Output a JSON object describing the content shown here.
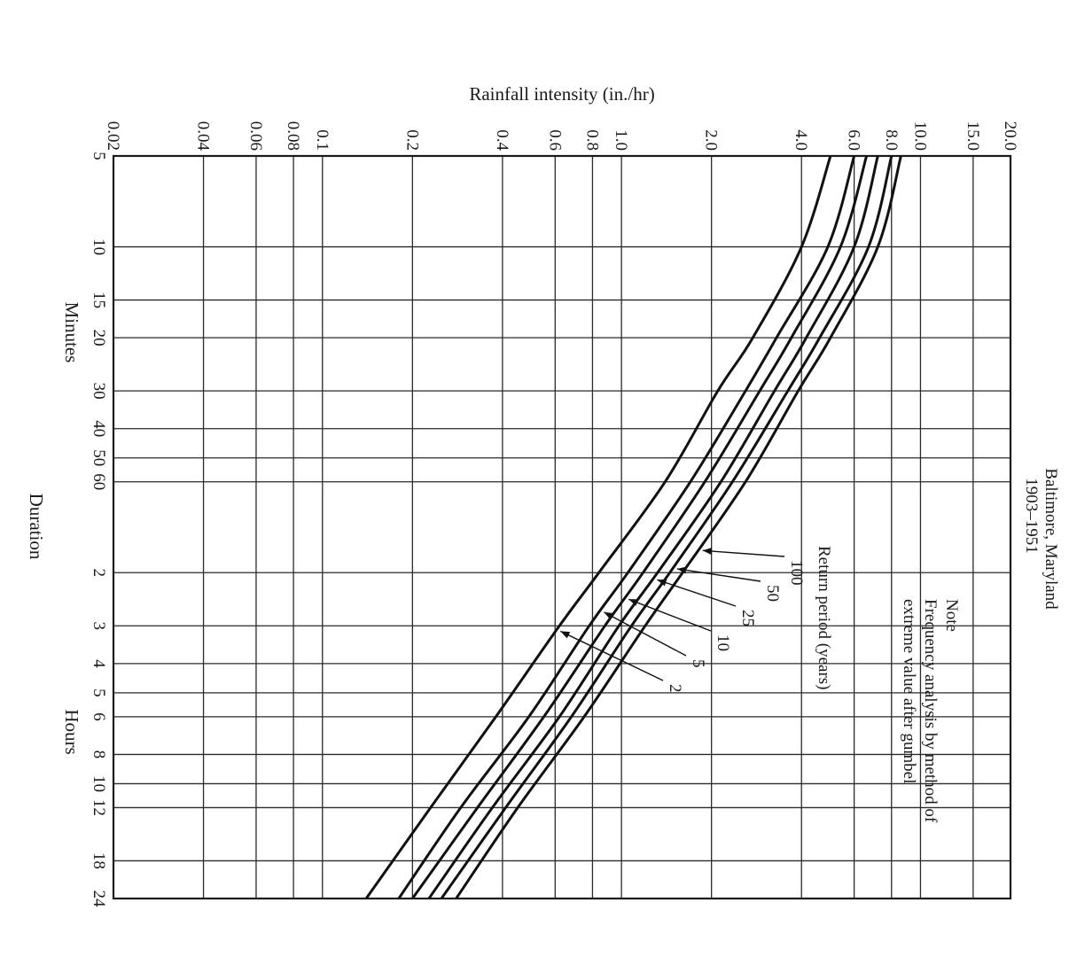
{
  "chart_data": {
    "type": "line",
    "y_axis_title": "Rainfall intensity (in./hr)",
    "x_axis_title": "Duration",
    "minutes_label": "Minutes",
    "hours_label": "Hours",
    "y_scale": "log",
    "x_scale": "log",
    "ylim": [
      0.02,
      20.0
    ],
    "xlim_minutes": [
      5,
      1440
    ],
    "y_ticks": [
      {
        "value": 0.02,
        "label": "0.02"
      },
      {
        "value": 0.04,
        "label": "0.04"
      },
      {
        "value": 0.06,
        "label": "0.06"
      },
      {
        "value": 0.08,
        "label": "0.08"
      },
      {
        "value": 0.1,
        "label": "0.1"
      },
      {
        "value": 0.2,
        "label": "0.2"
      },
      {
        "value": 0.4,
        "label": "0.4"
      },
      {
        "value": 0.6,
        "label": "0.6"
      },
      {
        "value": 0.8,
        "label": "0.8"
      },
      {
        "value": 1.0,
        "label": "1.0"
      },
      {
        "value": 2.0,
        "label": "2.0"
      },
      {
        "value": 4.0,
        "label": "4.0"
      },
      {
        "value": 6.0,
        "label": "6.0"
      },
      {
        "value": 8.0,
        "label": "8.0"
      },
      {
        "value": 10.0,
        "label": "10.0"
      },
      {
        "value": 15.0,
        "label": "15.0"
      },
      {
        "value": 20.0,
        "label": "20.0"
      }
    ],
    "x_ticks": [
      {
        "minutes": 5,
        "label": "5"
      },
      {
        "minutes": 10,
        "label": "10"
      },
      {
        "minutes": 15,
        "label": "15"
      },
      {
        "minutes": 20,
        "label": "20"
      },
      {
        "minutes": 30,
        "label": "30"
      },
      {
        "minutes": 40,
        "label": "40"
      },
      {
        "minutes": 50,
        "label": "50"
      },
      {
        "minutes": 60,
        "label": "60"
      },
      {
        "minutes": 120,
        "label": "2"
      },
      {
        "minutes": 180,
        "label": "3"
      },
      {
        "minutes": 240,
        "label": "4"
      },
      {
        "minutes": 300,
        "label": "5"
      },
      {
        "minutes": 360,
        "label": "6"
      },
      {
        "minutes": 480,
        "label": "8"
      },
      {
        "minutes": 600,
        "label": "10"
      },
      {
        "minutes": 720,
        "label": "12"
      },
      {
        "minutes": 1080,
        "label": "18"
      },
      {
        "minutes": 1440,
        "label": "24"
      }
    ],
    "series": [
      {
        "name": "100",
        "points": [
          [
            5,
            8.6
          ],
          [
            10,
            7.2
          ],
          [
            20,
            5.0
          ],
          [
            30,
            3.9
          ],
          [
            60,
            2.6
          ],
          [
            120,
            1.6
          ],
          [
            180,
            1.2
          ],
          [
            360,
            0.75
          ],
          [
            720,
            0.45
          ],
          [
            1440,
            0.28
          ]
        ]
      },
      {
        "name": "50",
        "points": [
          [
            5,
            8.0
          ],
          [
            10,
            6.7
          ],
          [
            20,
            4.6
          ],
          [
            30,
            3.6
          ],
          [
            60,
            2.35
          ],
          [
            120,
            1.45
          ],
          [
            180,
            1.08
          ],
          [
            360,
            0.68
          ],
          [
            720,
            0.41
          ],
          [
            1440,
            0.25
          ]
        ]
      },
      {
        "name": "25",
        "points": [
          [
            5,
            7.2
          ],
          [
            10,
            6.0
          ],
          [
            20,
            4.15
          ],
          [
            30,
            3.25
          ],
          [
            60,
            2.15
          ],
          [
            120,
            1.32
          ],
          [
            180,
            0.98
          ],
          [
            360,
            0.62
          ],
          [
            720,
            0.37
          ],
          [
            1440,
            0.227
          ]
        ]
      },
      {
        "name": "10",
        "points": [
          [
            5,
            6.6
          ],
          [
            10,
            5.4
          ],
          [
            20,
            3.7
          ],
          [
            30,
            2.9
          ],
          [
            60,
            1.9
          ],
          [
            120,
            1.18
          ],
          [
            180,
            0.88
          ],
          [
            360,
            0.55
          ],
          [
            720,
            0.33
          ],
          [
            1440,
            0.2
          ]
        ]
      },
      {
        "name": "5",
        "points": [
          [
            5,
            6.0
          ],
          [
            10,
            4.9
          ],
          [
            20,
            3.3
          ],
          [
            30,
            2.6
          ],
          [
            60,
            1.7
          ],
          [
            120,
            1.05
          ],
          [
            180,
            0.78
          ],
          [
            360,
            0.49
          ],
          [
            720,
            0.29
          ],
          [
            1440,
            0.18
          ]
        ]
      },
      {
        "name": "2",
        "points": [
          [
            5,
            5.0
          ],
          [
            10,
            4.0
          ],
          [
            20,
            2.75
          ],
          [
            30,
            2.1
          ],
          [
            60,
            1.4
          ],
          [
            120,
            0.84
          ],
          [
            180,
            0.62
          ],
          [
            360,
            0.38
          ],
          [
            720,
            0.23
          ],
          [
            1440,
            0.14
          ]
        ]
      }
    ],
    "location": "Baltimore, Maryland",
    "period": "1903–1951",
    "note_title": "Note",
    "note_line1": "Frequency analysis by method of",
    "note_line2": "extreme value after gumbel",
    "return_period_title": "Return period (years)",
    "grid": true
  }
}
